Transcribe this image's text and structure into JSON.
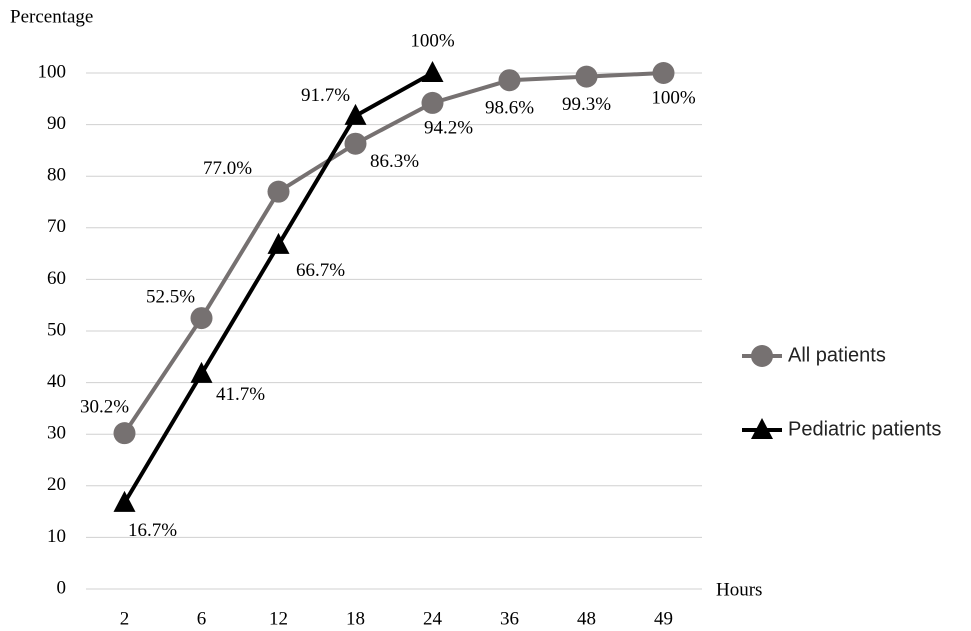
{
  "chart_data": {
    "type": "line",
    "y_label": "Percentage",
    "x_label": "Hours",
    "categories": [
      "2",
      "6",
      "12",
      "18",
      "24",
      "36",
      "48",
      "49"
    ],
    "series": [
      {
        "name": "All patients",
        "color": "#767171",
        "marker": "circle",
        "values": [
          30.2,
          52.5,
          77.0,
          86.3,
          94.2,
          98.6,
          99.3,
          100
        ],
        "value_labels": [
          "30.2%",
          "52.5%",
          "77.0%",
          "86.3%",
          "94.2%",
          "98.6%",
          "99.3%",
          "100%"
        ]
      },
      {
        "name": "Pediatric patients",
        "color": "#000000",
        "marker": "triangle",
        "values": [
          16.7,
          41.7,
          66.7,
          91.7,
          100,
          null,
          null,
          null
        ],
        "value_labels": [
          "16.7%",
          "41.7%",
          "66.7%",
          "91.7%",
          "100%",
          null,
          null,
          null
        ]
      }
    ],
    "ylim": [
      0,
      100
    ],
    "yticks": [
      0,
      10,
      20,
      30,
      40,
      50,
      60,
      70,
      80,
      90,
      100
    ],
    "grid": true
  }
}
